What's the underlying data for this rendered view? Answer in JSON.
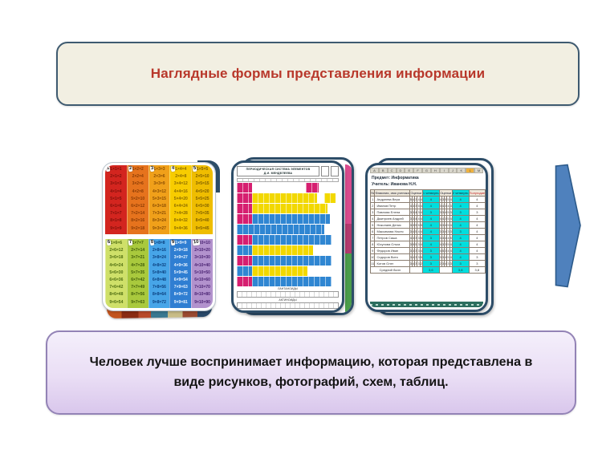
{
  "slide": {
    "title": "Наглядные формы представления информации",
    "conclusion": "Человек лучше воспринимает информацию, которая представлена в виде рисунков, фотографий, схем, таблиц."
  },
  "colors": {
    "title_bg": "#f2efe2",
    "title_border": "#3e5a70",
    "title_text": "#b8372a",
    "conclusion_border": "#9383b6",
    "conclusion_bg": "#e5d7f2",
    "card_frame": "#2d4d68",
    "arrow_fill": "#4f81bd",
    "arrow_stroke": "#2c5a8a",
    "cyan_cell": "#00dede"
  },
  "multiplication_table": {
    "columns": [
      {
        "badge": "1",
        "bg": "#d3251f",
        "text_color": "#7c100a",
        "rows": [
          "1×1=1",
          "2×1=2",
          "3×1=3",
          "4×1=4",
          "5×1=5",
          "6×1=6",
          "7×1=7",
          "8×1=8",
          "9×1=9"
        ]
      },
      {
        "badge": "2",
        "bg": "#e6731d",
        "text_color": "#8a3c06",
        "rows": [
          "1×2=2",
          "2×2=4",
          "3×2=6",
          "4×2=8",
          "5×2=10",
          "6×2=12",
          "7×2=14",
          "8×2=16",
          "9×2=18"
        ]
      },
      {
        "badge": "3",
        "bg": "#f0a01a",
        "text_color": "#8a4e04",
        "rows": [
          "1×3=3",
          "2×3=6",
          "3×3=9",
          "4×3=12",
          "5×3=15",
          "6×3=18",
          "7×3=21",
          "8×3=24",
          "9×3=27"
        ]
      },
      {
        "badge": "4",
        "bg": "#f8cc00",
        "text_color": "#8a6a00",
        "rows": [
          "1×4=4",
          "2×4=8",
          "3×4=12",
          "4×4=16",
          "5×4=20",
          "6×4=24",
          "7×4=28",
          "8×4=32",
          "9×4=36"
        ]
      },
      {
        "badge": "5",
        "bg": "#efbd00",
        "text_color": "#7d5e00",
        "rows": [
          "1×5=5",
          "2×5=10",
          "3×5=15",
          "4×5=20",
          "5×5=25",
          "6×5=30",
          "7×5=35",
          "8×5=40",
          "9×5=45"
        ]
      },
      {
        "badge": "6",
        "bg": "#cfe069",
        "text_color": "#4c6b10",
        "rows": [
          "1×6=6",
          "2×6=12",
          "3×6=18",
          "4×6=24",
          "5×6=30",
          "6×6=36",
          "7×6=42",
          "8×6=48",
          "9×6=54"
        ]
      },
      {
        "badge": "7",
        "bg": "#a9c93d",
        "text_color": "#3f5c0a",
        "rows": [
          "1×7=7",
          "2×7=14",
          "3×7=21",
          "4×7=28",
          "5×7=35",
          "6×7=42",
          "7×7=49",
          "8×7=56",
          "9×7=63"
        ]
      },
      {
        "badge": "8",
        "bg": "#47a5e8",
        "text_color": "#0b3f7e",
        "rows": [
          "1×8=8",
          "2×8=16",
          "3×8=24",
          "4×8=32",
          "5×8=40",
          "6×8=48",
          "7×8=56",
          "8×8=64",
          "9×8=72"
        ]
      },
      {
        "badge": "9",
        "bg": "#2f7ed2",
        "text_color": "#eaf4ff",
        "rows": [
          "1×9=9",
          "2×9=18",
          "3×9=27",
          "4×9=36",
          "5×9=45",
          "6×9=54",
          "7×9=63",
          "8×9=72",
          "9×9=81"
        ]
      },
      {
        "badge": "10",
        "bg": "#b292cd",
        "text_color": "#4b2473",
        "rows": [
          "1×10=10",
          "2×10=20",
          "3×10=30",
          "4×10=40",
          "5×10=50",
          "6×10=60",
          "7×10=70",
          "8×10=80",
          "9×10=90"
        ]
      }
    ]
  },
  "periodic_table": {
    "title_line1": "ПЕРИОДИЧЕСКАЯ СИСТЕМА ЭЛЕМЕНТОВ",
    "title_line2": "Д.И. МЕНДЕЛЕЕВА",
    "footer_label1": "ЛАНТАНОИДЫ",
    "footer_label2": "АКТИНОИДЫ",
    "rows": [
      [
        "magenta:15",
        "white:53",
        "magenta:12",
        "white:20"
      ],
      [
        "magenta:15",
        "yellow:64",
        "white:7",
        "yellow:11",
        "white:3"
      ],
      [
        "magenta:15",
        "yellow:74",
        "white:11"
      ],
      [
        "magenta:15",
        "blue:76",
        "white:9"
      ],
      [
        "blue:86",
        "white:14"
      ],
      [
        "magenta:15",
        "blue:78",
        "white:7"
      ],
      [
        "blue:15",
        "yellow:60",
        "white:25"
      ],
      [
        "magenta:15",
        "blue:78",
        "white:7"
      ],
      [
        "blue:15",
        "yellow:54",
        "white:31"
      ],
      [
        "magenta:15",
        "blue:78",
        "white:7"
      ]
    ]
  },
  "spreadsheet": {
    "subject_line": "Предмет: Информатика",
    "teacher_line": "Учитель: Иванова Н.Н.",
    "col_letters": [
      "A",
      "B",
      "C",
      "D",
      "E",
      "F",
      "G",
      "H",
      "I",
      "J",
      "K",
      "L",
      "M"
    ],
    "highlight_letter_index": 11,
    "headers": [
      {
        "label": "№",
        "span": 1,
        "style": "plain"
      },
      {
        "label": "Фамилия, имя ученика",
        "span": 1,
        "style": "plain"
      },
      {
        "label": "Оценки",
        "span": 5,
        "style": "plain"
      },
      {
        "label": "1 четверть",
        "span": 1,
        "style": "cyan"
      },
      {
        "label": "Оценки",
        "span": 5,
        "style": "plain"
      },
      {
        "label": "2 четверть",
        "span": 1,
        "style": "cyan"
      },
      {
        "label": "Полугодие",
        "span": 1,
        "style": "red"
      }
    ],
    "rows": [
      [
        "1",
        "Андреева Вера",
        [
          "5",
          "4",
          "3",
          "4",
          "4"
        ],
        "4",
        [
          "4",
          "3",
          "5",
          "5",
          "4"
        ],
        "4",
        "4"
      ],
      [
        "2",
        "Иванов Петр",
        [
          "4",
          "3",
          "3",
          "5",
          "4"
        ],
        "4",
        [
          "3",
          "4",
          "3",
          "4",
          "3"
        ],
        "4",
        "4"
      ],
      [
        "3",
        "Павлова Елена",
        [
          "3",
          "3",
          "4",
          "3",
          "4"
        ],
        "3",
        [
          "3",
          "3",
          "4",
          "5",
          "3"
        ],
        "3",
        "3"
      ],
      [
        "4",
        "Дмитриев Андрей",
        [
          "3",
          "3",
          "4",
          "4",
          "4"
        ],
        "4",
        [
          "4",
          "4",
          "3",
          "5",
          "4"
        ],
        "4",
        "4"
      ],
      [
        "5",
        "Николаев Денис",
        [
          "3",
          "3",
          "5",
          "5",
          "5"
        ],
        "4",
        [
          "3",
          "3",
          "4",
          "5",
          "4"
        ],
        "4",
        "4"
      ],
      [
        "6",
        "Максимова Настя",
        [
          "3",
          "4",
          "5",
          "4",
          "4"
        ],
        "4",
        [
          "3",
          "3",
          "4",
          "3",
          "3"
        ],
        "3",
        "4"
      ],
      [
        "7",
        "Петров Саша",
        [
          "4",
          "3",
          "3",
          "3",
          "5"
        ],
        "3",
        [
          "3",
          "3",
          "4",
          "4",
          "5"
        ],
        "4",
        "4"
      ],
      [
        "8",
        "Юсупова Ольга",
        [
          "3",
          "5",
          "5",
          "3",
          "4"
        ],
        "4",
        [
          "4",
          "3",
          "3",
          "5",
          "4"
        ],
        "4",
        "4"
      ],
      [
        "9",
        "Федоров Иван",
        [
          "3",
          "3",
          "3",
          "3",
          "4"
        ],
        "3",
        [
          "4",
          "5",
          "3",
          "4",
          "4"
        ],
        "4",
        "4"
      ],
      [
        "10",
        "Сидоров Витя",
        [
          "3",
          "4",
          "3",
          "3",
          "5"
        ],
        "3",
        [
          "3",
          "3",
          "4",
          "5",
          "4"
        ],
        "4",
        "3"
      ],
      [
        "11",
        "Котов Олег",
        [
          "3",
          "4",
          "3",
          "3",
          "2"
        ],
        "3",
        [
          "2",
          "3",
          "4",
          "3",
          "3"
        ],
        "3",
        "3"
      ]
    ],
    "summary": {
      "label": "Средний балл",
      "q1": "3,6",
      "q2": "3,8",
      "final": "3,8"
    }
  },
  "arrow": {
    "name": "right-arrow"
  }
}
